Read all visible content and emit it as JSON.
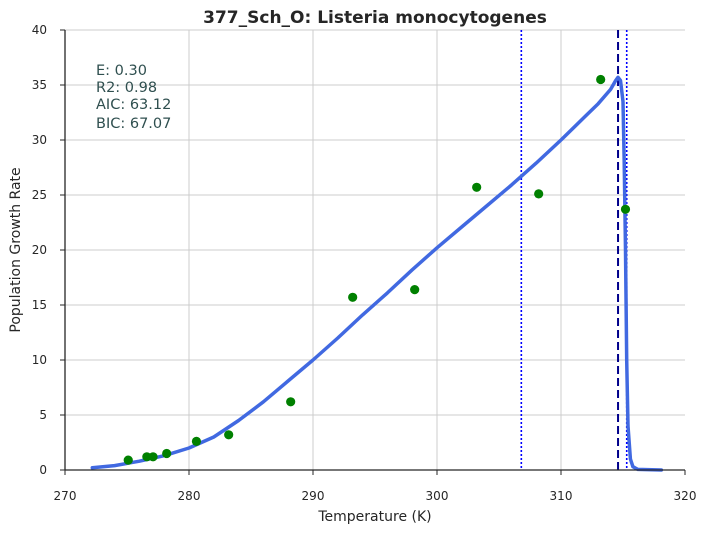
{
  "chart_data": {
    "type": "scatter",
    "title": "377_Sch_O: Listeria monocytogenes",
    "xlabel": "Temperature (K)",
    "ylabel": "Population Growth Rate",
    "xlim": [
      270,
      320
    ],
    "ylim": [
      0,
      40
    ],
    "xticks": [
      270,
      280,
      290,
      300,
      310,
      320
    ],
    "yticks": [
      0,
      5,
      10,
      15,
      20,
      25,
      30,
      35,
      40
    ],
    "grid": true,
    "stats": [
      "E:  0.30",
      "R2:  0.98",
      "AIC: 63.12",
      "BIC: 67.07"
    ],
    "points": {
      "color": "#008000",
      "x": [
        275.1,
        276.6,
        277.1,
        278.2,
        280.6,
        283.2,
        288.2,
        293.2,
        298.2,
        303.2,
        308.2,
        313.2,
        315.2
      ],
      "y": [
        0.9,
        1.2,
        1.2,
        1.5,
        2.6,
        3.2,
        6.2,
        15.7,
        16.4,
        25.7,
        25.1,
        35.5,
        23.7
      ]
    },
    "fit_curve": {
      "color": "#4169E1",
      "x": [
        272.2,
        274,
        276,
        278,
        280,
        282,
        284,
        286,
        288,
        290,
        292,
        294,
        296,
        298,
        300,
        302,
        304,
        306,
        308,
        310,
        312,
        313,
        314,
        314.4,
        314.6,
        314.8,
        315.0,
        315.1,
        315.2,
        315.3,
        315.4,
        315.6,
        315.8,
        316.2,
        318.1
      ],
      "y": [
        0.2,
        0.4,
        0.8,
        1.3,
        2.0,
        3.0,
        4.5,
        6.2,
        8.1,
        10.0,
        12.0,
        14.1,
        16.1,
        18.2,
        20.2,
        22.1,
        24.0,
        25.9,
        27.9,
        30.0,
        32.2,
        33.3,
        34.6,
        35.4,
        35.7,
        35.4,
        33.5,
        28.0,
        20.0,
        10.0,
        4.0,
        1.0,
        0.3,
        0.05,
        0.0
      ]
    },
    "vlines": [
      {
        "x": 306.8,
        "style": "dotted",
        "color": "#0000FF"
      },
      {
        "x": 314.6,
        "style": "dashed",
        "color": "#00008B"
      },
      {
        "x": 315.3,
        "style": "dotted",
        "color": "#0000FF"
      }
    ]
  }
}
